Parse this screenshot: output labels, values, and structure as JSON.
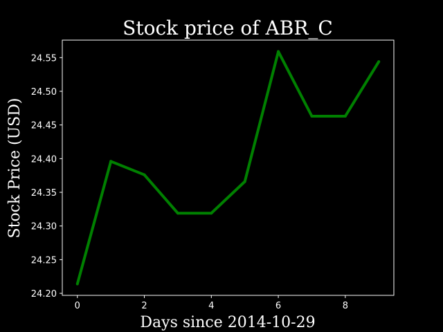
{
  "chart_data": {
    "type": "line",
    "title": "Stock price of ABR_C",
    "xlabel": "Days since 2014-10-29",
    "ylabel": "Stock Price (USD)",
    "x": [
      0,
      1,
      2,
      3,
      4,
      5,
      6,
      7,
      8,
      9
    ],
    "series": [
      {
        "values": [
          24.214,
          24.396,
          24.376,
          24.319,
          24.319,
          24.366,
          24.559,
          24.463,
          24.463,
          24.544
        ],
        "color": "#008000"
      }
    ],
    "xlim": [
      -0.45,
      9.45
    ],
    "ylim": [
      24.197,
      24.576
    ],
    "xticks": [
      0,
      2,
      4,
      6,
      8
    ],
    "xtick_labels": [
      "0",
      "2",
      "4",
      "6",
      "8"
    ],
    "yticks": [
      24.2,
      24.25,
      24.3,
      24.35,
      24.4,
      24.45,
      24.5,
      24.55
    ],
    "ytick_labels": [
      "24.20",
      "24.25",
      "24.30",
      "24.35",
      "24.40",
      "24.45",
      "24.50",
      "24.55"
    ],
    "grid": false,
    "background": "#000000",
    "foreground": "#ffffff"
  }
}
